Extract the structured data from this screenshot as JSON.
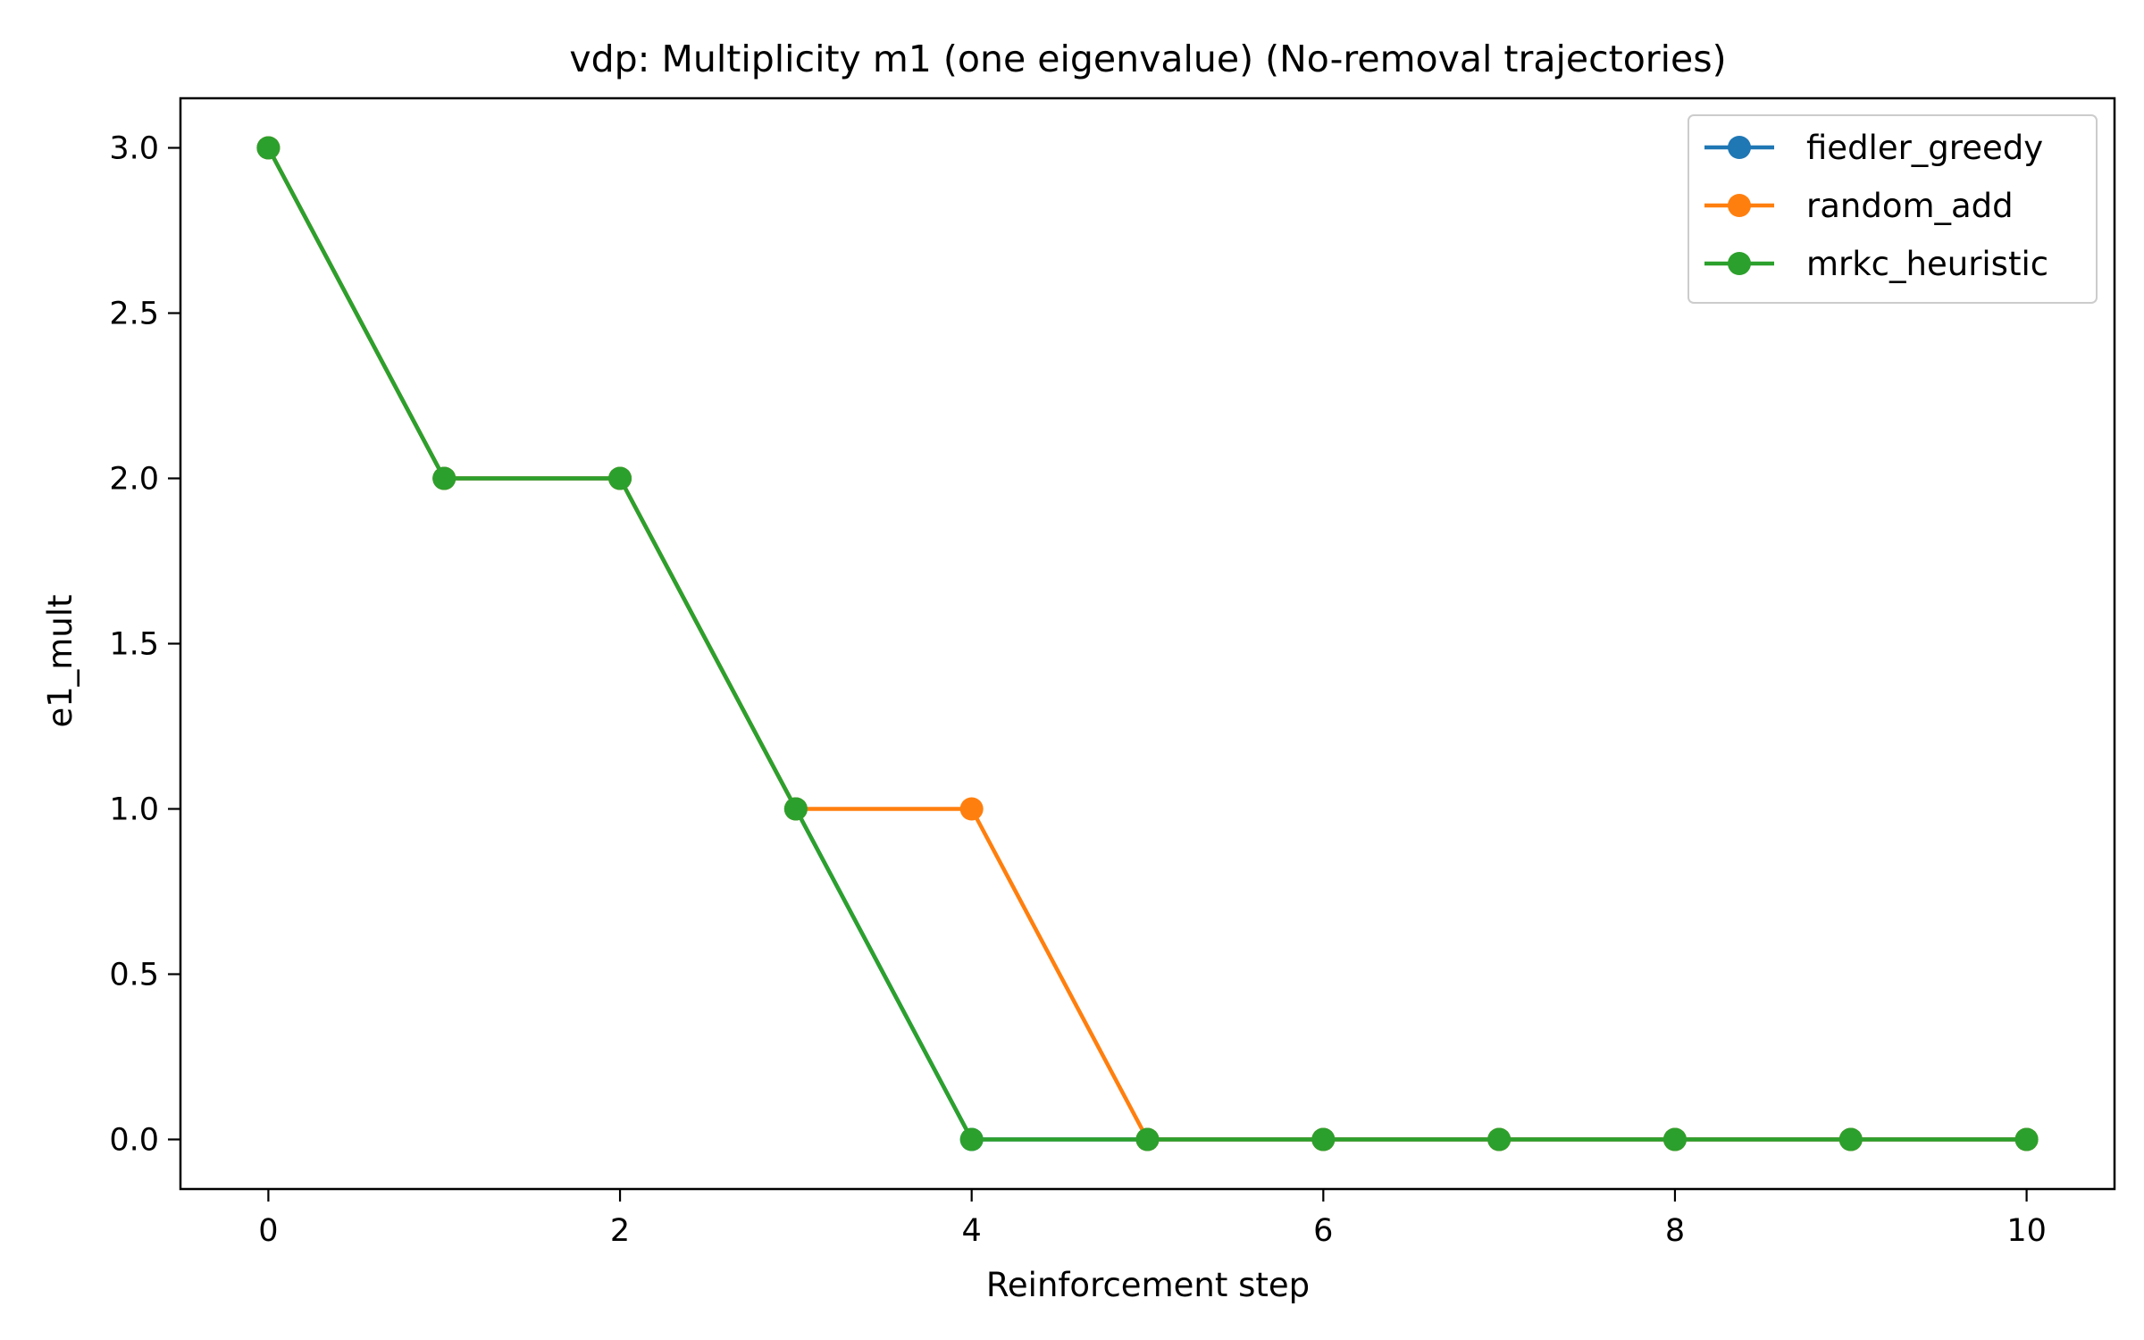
{
  "chart_data": {
    "type": "line",
    "title": "vdp: Multiplicity m1 (one eigenvalue) (No-removal trajectories)",
    "xlabel": "Reinforcement step",
    "ylabel": "e1_mult",
    "xlim": [
      -0.5,
      10.5
    ],
    "ylim": [
      -0.15,
      3.15
    ],
    "xticks": [
      0,
      2,
      4,
      6,
      8,
      10
    ],
    "yticks": [
      0.0,
      0.5,
      1.0,
      1.5,
      2.0,
      2.5,
      3.0
    ],
    "xtick_labels": [
      "0",
      "2",
      "4",
      "6",
      "8",
      "10"
    ],
    "ytick_labels": [
      "0.0",
      "0.5",
      "1.0",
      "1.5",
      "2.0",
      "2.5",
      "3.0"
    ],
    "grid": false,
    "legend_position": "top-right",
    "x": [
      0,
      1,
      2,
      3,
      4,
      5,
      6,
      7,
      8,
      9,
      10
    ],
    "series": [
      {
        "name": "fiedler_greedy",
        "color": "#1f77b4",
        "values": [
          3,
          2,
          2,
          1,
          0,
          0,
          0,
          0,
          0,
          0,
          0
        ]
      },
      {
        "name": "random_add",
        "color": "#ff7f0e",
        "values": [
          3,
          2,
          2,
          1,
          1,
          0,
          0,
          0,
          0,
          0,
          0
        ]
      },
      {
        "name": "mrkc_heuristic",
        "color": "#2ca02c",
        "values": [
          3,
          2,
          2,
          1,
          0,
          0,
          0,
          0,
          0,
          0,
          0
        ]
      }
    ]
  }
}
